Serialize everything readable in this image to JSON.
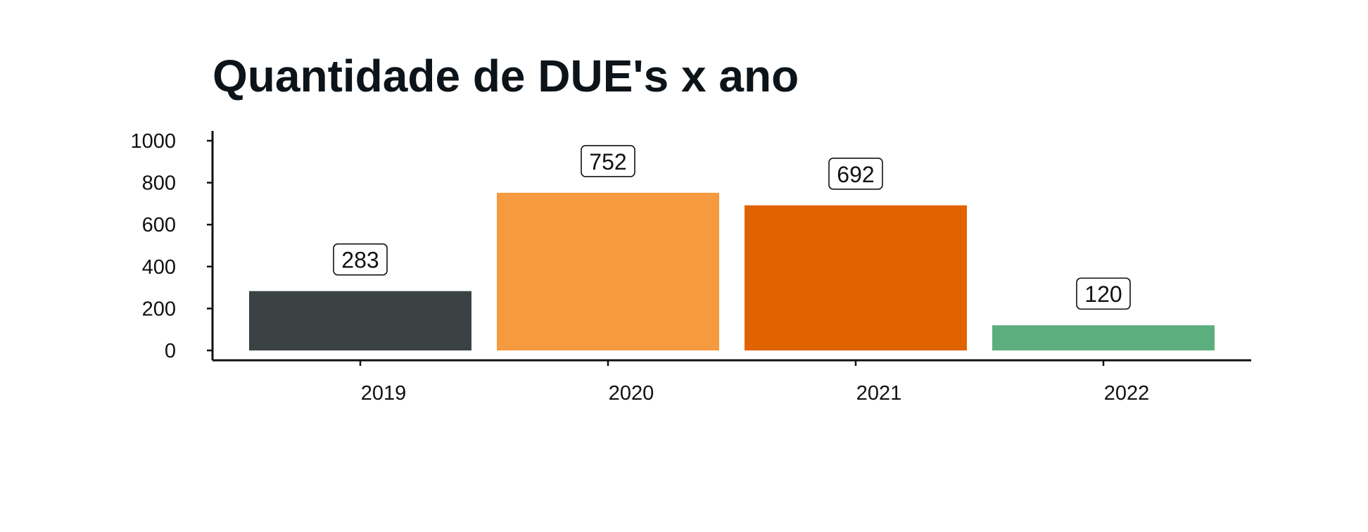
{
  "chart_data": {
    "type": "bar",
    "title": "Quantidade de DUE's x ano",
    "xlabel": "",
    "ylabel": "",
    "categories": [
      "2019",
      "2020",
      "2021",
      "2022"
    ],
    "values": [
      283,
      752,
      692,
      120
    ],
    "data_labels": [
      "283",
      "752",
      "692",
      "120"
    ],
    "colors": [
      "#3b4244",
      "#f59a3f",
      "#e06300",
      "#5dae7e"
    ],
    "ylim": [
      0,
      1000
    ],
    "yticks": [
      0,
      200,
      400,
      600,
      800,
      1000
    ],
    "ytick_labels": [
      "0",
      "200",
      "400",
      "600",
      "800",
      "1000"
    ],
    "grid": false,
    "legend": "none"
  }
}
